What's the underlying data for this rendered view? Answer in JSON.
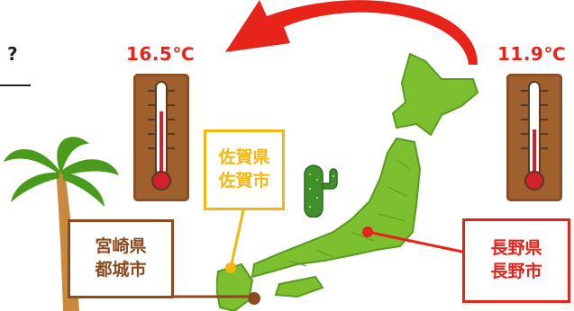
{
  "question_mark": "?",
  "temperatures": {
    "left": "16.5℃",
    "right": "11.9℃"
  },
  "labels": {
    "saga": {
      "line1": "佐賀県",
      "line2": "佐賀市",
      "color": "#f5b60f"
    },
    "miyazaki": {
      "line1": "宮崎県",
      "line2": "都城市",
      "color": "#8b4a1f"
    },
    "nagano": {
      "line1": "長野県",
      "line2": "長野市",
      "color": "#e8231a"
    }
  },
  "icons": [
    "palm-tree-icon",
    "cactus-icon",
    "thermometer-icon",
    "curved-arrow-icon",
    "japan-map-icon"
  ],
  "colors": {
    "arrow": "#e8231a",
    "map": "#7cbf2f",
    "thermometer_board": "#a0602d"
  }
}
